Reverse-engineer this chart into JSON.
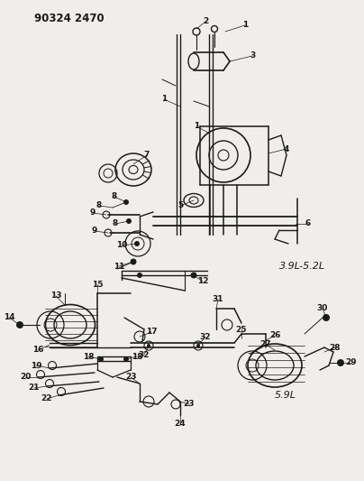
{
  "title": "90324 2470",
  "background_color": "#f5f5f0",
  "fig_width": 4.04,
  "fig_height": 5.33,
  "dpi": 100,
  "top_label": "3.9L-5.2L",
  "bottom_label": "5.9L"
}
